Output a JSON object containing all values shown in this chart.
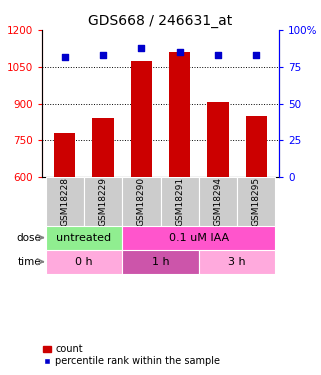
{
  "title": "GDS668 / 246631_at",
  "samples": [
    "GSM18228",
    "GSM18229",
    "GSM18290",
    "GSM18291",
    "GSM18294",
    "GSM18295"
  ],
  "bar_values": [
    780,
    840,
    1075,
    1110,
    905,
    850
  ],
  "bar_bottom": 600,
  "percentile_values": [
    82,
    83,
    88,
    85,
    83,
    83
  ],
  "bar_color": "#cc0000",
  "dot_color": "#0000cc",
  "ylim_left": [
    600,
    1200
  ],
  "ylim_right": [
    0,
    100
  ],
  "yticks_left": [
    600,
    750,
    900,
    1050,
    1200
  ],
  "yticks_right": [
    0,
    25,
    50,
    75,
    100
  ],
  "ytick_labels_right": [
    "0",
    "25",
    "50",
    "75",
    "100%"
  ],
  "grid_values": [
    750,
    900,
    1050
  ],
  "dose_groups": [
    {
      "label": "untreated",
      "start": 0,
      "end": 2,
      "color": "#90ee90"
    },
    {
      "label": "0.1 uM IAA",
      "start": 2,
      "end": 6,
      "color": "#ff55cc"
    }
  ],
  "time_groups": [
    {
      "label": "0 h",
      "start": 0,
      "end": 2,
      "color": "#ffaadd"
    },
    {
      "label": "1 h",
      "start": 2,
      "end": 4,
      "color": "#cc55aa"
    },
    {
      "label": "3 h",
      "start": 4,
      "end": 6,
      "color": "#ffaadd"
    }
  ],
  "dose_label": "dose",
  "time_label": "time",
  "legend_bar_label": "count",
  "legend_dot_label": "percentile rank within the sample",
  "title_fontsize": 10,
  "tick_fontsize": 7.5,
  "sample_fontsize": 6.5,
  "row_fontsize": 8,
  "legend_fontsize": 7
}
